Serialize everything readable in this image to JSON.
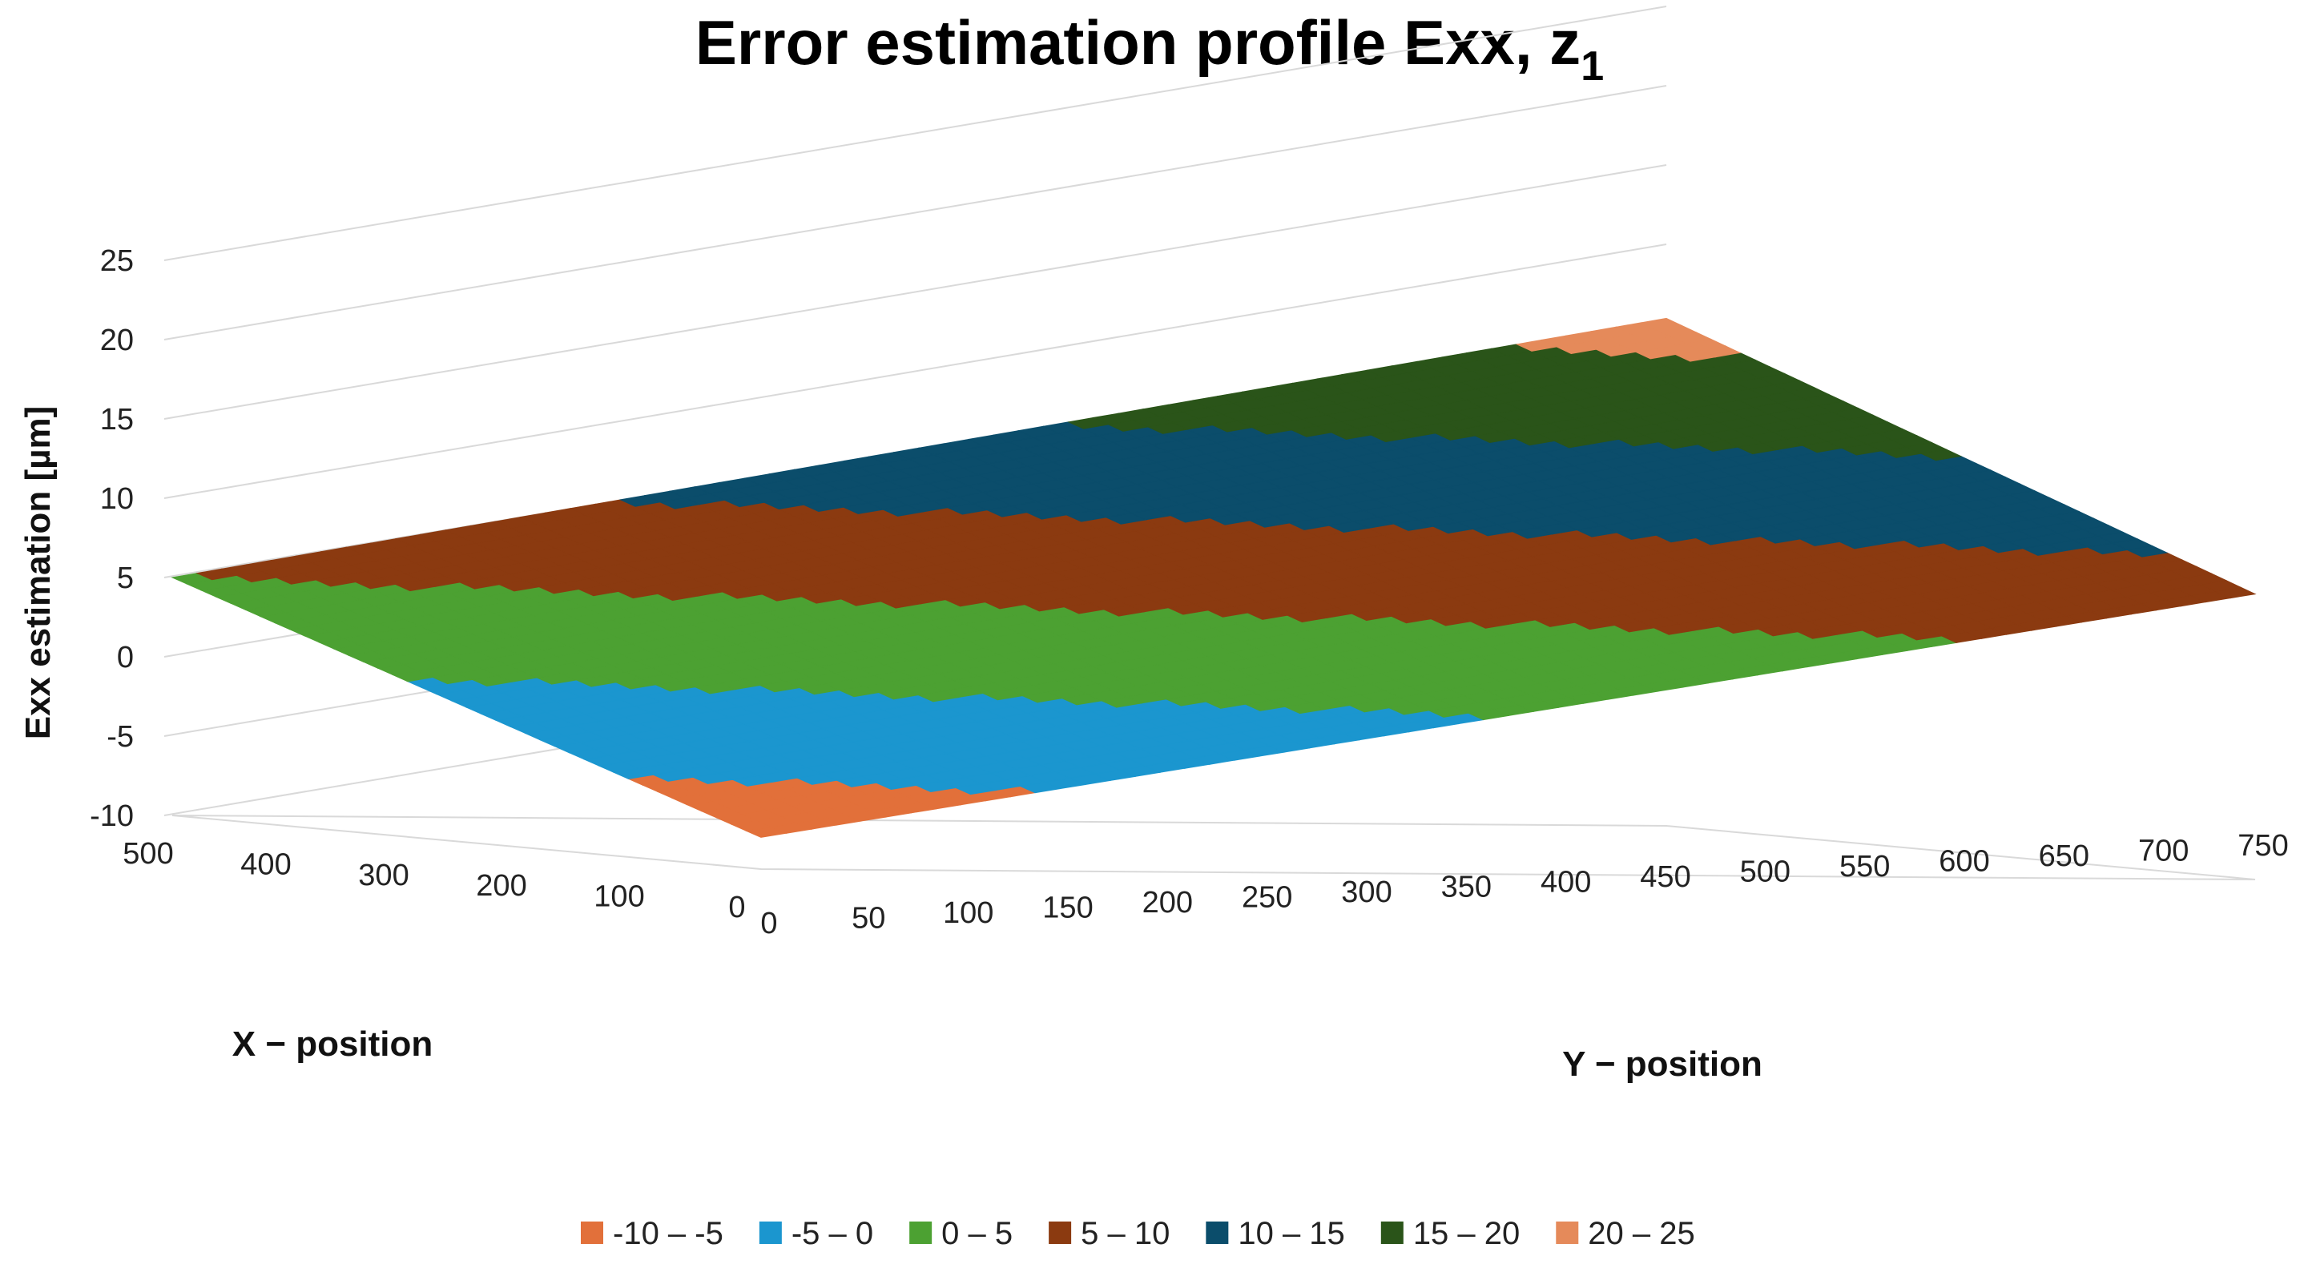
{
  "chart_data": {
    "type": "surface",
    "title": "Error estimation profile Exx, z",
    "title_subscript": "1",
    "xlabel": "X − position",
    "ylabel": "Y − position",
    "zlabel": "Exx estimation [µm]",
    "x_ticks": [
      "0",
      "100",
      "200",
      "300",
      "400",
      "500"
    ],
    "y_ticks": [
      "0",
      "50",
      "100",
      "150",
      "200",
      "250",
      "300",
      "350",
      "400",
      "450",
      "500",
      "550",
      "600",
      "650",
      "700",
      "750"
    ],
    "z_ticks": [
      "-10",
      "-5",
      "0",
      "5",
      "10",
      "15",
      "20",
      "25"
    ],
    "xlim": [
      0,
      500
    ],
    "ylim": [
      0,
      750
    ],
    "zlim": [
      -10,
      25
    ],
    "grid": true,
    "legend_position": "bottom",
    "legend": [
      {
        "label": "-10 – -5",
        "color": "#E2703A"
      },
      {
        "label": "-5 – 0",
        "color": "#1B96CF"
      },
      {
        "label": "0 – 5",
        "color": "#4CA132"
      },
      {
        "label": "5 – 10",
        "color": "#8B3A10"
      },
      {
        "label": "10 – 15",
        "color": "#0B4D6B"
      },
      {
        "label": "15 – 20",
        "color": "#2A5419"
      },
      {
        "label": "20 – 25",
        "color": "#E58A5A"
      }
    ],
    "surface_corners": [
      {
        "x": 0,
        "y": 0,
        "z": -8
      },
      {
        "x": 500,
        "y": 0,
        "z": 5
      },
      {
        "x": 500,
        "y": 750,
        "z": 22
      },
      {
        "x": 0,
        "y": 750,
        "z": 8
      }
    ]
  }
}
